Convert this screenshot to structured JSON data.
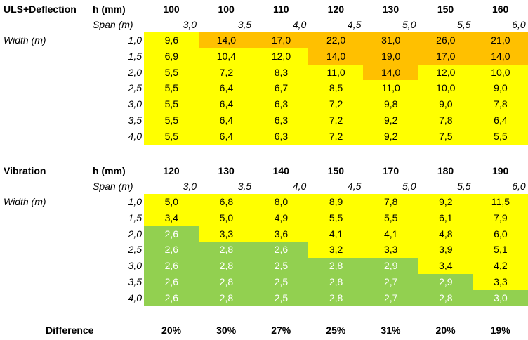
{
  "tables": [
    {
      "title": "ULS+Deflection",
      "h_label": "h (mm)",
      "h_values": [
        "100",
        "100",
        "110",
        "120",
        "130",
        "150",
        "160"
      ],
      "span_label": "Span (m)",
      "spans": [
        "3,0",
        "3,5",
        "4,0",
        "4,5",
        "5,0",
        "5,5",
        "6,0"
      ],
      "width_label": "Width (m)",
      "rows": [
        {
          "width": "1,0",
          "cells": [
            {
              "text": "9,6",
              "fill": "yellow"
            },
            {
              "text": "14,0",
              "fill": "orange"
            },
            {
              "text": "17,0",
              "fill": "orange"
            },
            {
              "text": "22,0",
              "fill": "orange"
            },
            {
              "text": "31,0",
              "fill": "orange"
            },
            {
              "text": "26,0",
              "fill": "orange"
            },
            {
              "text": "21,0",
              "fill": "orange"
            }
          ]
        },
        {
          "width": "1,5",
          "cells": [
            {
              "text": "6,9",
              "fill": "yellow"
            },
            {
              "text": "10,4",
              "fill": "yellow"
            },
            {
              "text": "12,0",
              "fill": "yellow"
            },
            {
              "text": "14,0",
              "fill": "orange"
            },
            {
              "text": "19,0",
              "fill": "orange"
            },
            {
              "text": "17,0",
              "fill": "orange"
            },
            {
              "text": "14,0",
              "fill": "orange"
            }
          ]
        },
        {
          "width": "2,0",
          "cells": [
            {
              "text": "5,5",
              "fill": "yellow"
            },
            {
              "text": "7,2",
              "fill": "yellow"
            },
            {
              "text": "8,3",
              "fill": "yellow"
            },
            {
              "text": "11,0",
              "fill": "yellow"
            },
            {
              "text": "14,0",
              "fill": "orange"
            },
            {
              "text": "12,0",
              "fill": "yellow"
            },
            {
              "text": "10,0",
              "fill": "yellow"
            }
          ]
        },
        {
          "width": "2,5",
          "cells": [
            {
              "text": "5,5",
              "fill": "yellow"
            },
            {
              "text": "6,4",
              "fill": "yellow"
            },
            {
              "text": "6,7",
              "fill": "yellow"
            },
            {
              "text": "8,5",
              "fill": "yellow"
            },
            {
              "text": "11,0",
              "fill": "yellow"
            },
            {
              "text": "10,0",
              "fill": "yellow"
            },
            {
              "text": "9,0",
              "fill": "yellow"
            }
          ]
        },
        {
          "width": "3,0",
          "cells": [
            {
              "text": "5,5",
              "fill": "yellow"
            },
            {
              "text": "6,4",
              "fill": "yellow"
            },
            {
              "text": "6,3",
              "fill": "yellow"
            },
            {
              "text": "7,2",
              "fill": "yellow"
            },
            {
              "text": "9,8",
              "fill": "yellow"
            },
            {
              "text": "9,0",
              "fill": "yellow"
            },
            {
              "text": "7,8",
              "fill": "yellow"
            }
          ]
        },
        {
          "width": "3,5",
          "cells": [
            {
              "text": "5,5",
              "fill": "yellow"
            },
            {
              "text": "6,4",
              "fill": "yellow"
            },
            {
              "text": "6,3",
              "fill": "yellow"
            },
            {
              "text": "7,2",
              "fill": "yellow"
            },
            {
              "text": "9,2",
              "fill": "yellow"
            },
            {
              "text": "7,8",
              "fill": "yellow"
            },
            {
              "text": "6,4",
              "fill": "yellow"
            }
          ]
        },
        {
          "width": "4,0",
          "cells": [
            {
              "text": "5,5",
              "fill": "yellow"
            },
            {
              "text": "6,4",
              "fill": "yellow"
            },
            {
              "text": "6,3",
              "fill": "yellow"
            },
            {
              "text": "7,2",
              "fill": "yellow"
            },
            {
              "text": "9,2",
              "fill": "yellow"
            },
            {
              "text": "7,5",
              "fill": "yellow"
            },
            {
              "text": "5,5",
              "fill": "yellow"
            }
          ]
        }
      ]
    },
    {
      "title": "Vibration",
      "h_label": "h (mm)",
      "h_values": [
        "120",
        "130",
        "140",
        "150",
        "170",
        "180",
        "190"
      ],
      "span_label": "Span (m)",
      "spans": [
        "3,0",
        "3,5",
        "4,0",
        "4,5",
        "5,0",
        "5,5",
        "6,0"
      ],
      "width_label": "Width (m)",
      "rows": [
        {
          "width": "1,0",
          "cells": [
            {
              "text": "5,0",
              "fill": "yellow"
            },
            {
              "text": "6,8",
              "fill": "yellow"
            },
            {
              "text": "8,0",
              "fill": "yellow"
            },
            {
              "text": "8,9",
              "fill": "yellow"
            },
            {
              "text": "7,8",
              "fill": "yellow"
            },
            {
              "text": "9,2",
              "fill": "yellow"
            },
            {
              "text": "11,5",
              "fill": "yellow"
            }
          ]
        },
        {
          "width": "1,5",
          "cells": [
            {
              "text": "3,4",
              "fill": "yellow"
            },
            {
              "text": "5,0",
              "fill": "yellow"
            },
            {
              "text": "4,9",
              "fill": "yellow"
            },
            {
              "text": "5,5",
              "fill": "yellow"
            },
            {
              "text": "5,5",
              "fill": "yellow"
            },
            {
              "text": "6,1",
              "fill": "yellow"
            },
            {
              "text": "7,9",
              "fill": "yellow"
            }
          ]
        },
        {
          "width": "2,0",
          "cells": [
            {
              "text": "2,6",
              "fill": "green"
            },
            {
              "text": "3,3",
              "fill": "yellow"
            },
            {
              "text": "3,6",
              "fill": "yellow"
            },
            {
              "text": "4,1",
              "fill": "yellow"
            },
            {
              "text": "4,1",
              "fill": "yellow"
            },
            {
              "text": "4,8",
              "fill": "yellow"
            },
            {
              "text": "6,0",
              "fill": "yellow"
            }
          ]
        },
        {
          "width": "2,5",
          "cells": [
            {
              "text": "2,6",
              "fill": "green"
            },
            {
              "text": "2,8",
              "fill": "green"
            },
            {
              "text": "2,6",
              "fill": "green"
            },
            {
              "text": "3,2",
              "fill": "yellow"
            },
            {
              "text": "3,3",
              "fill": "yellow"
            },
            {
              "text": "3,9",
              "fill": "yellow"
            },
            {
              "text": "5,1",
              "fill": "yellow"
            }
          ]
        },
        {
          "width": "3,0",
          "cells": [
            {
              "text": "2,6",
              "fill": "green"
            },
            {
              "text": "2,8",
              "fill": "green"
            },
            {
              "text": "2,5",
              "fill": "green"
            },
            {
              "text": "2,8",
              "fill": "green"
            },
            {
              "text": "2,9",
              "fill": "green"
            },
            {
              "text": "3,4",
              "fill": "yellow"
            },
            {
              "text": "4,2",
              "fill": "yellow"
            }
          ]
        },
        {
          "width": "3,5",
          "cells": [
            {
              "text": "2,6",
              "fill": "green"
            },
            {
              "text": "2,8",
              "fill": "green"
            },
            {
              "text": "2,5",
              "fill": "green"
            },
            {
              "text": "2,8",
              "fill": "green"
            },
            {
              "text": "2,7",
              "fill": "green"
            },
            {
              "text": "2,9",
              "fill": "green"
            },
            {
              "text": "3,3",
              "fill": "yellow"
            }
          ]
        },
        {
          "width": "4,0",
          "cells": [
            {
              "text": "2,6",
              "fill": "green"
            },
            {
              "text": "2,8",
              "fill": "green"
            },
            {
              "text": "2,5",
              "fill": "green"
            },
            {
              "text": "2,8",
              "fill": "green"
            },
            {
              "text": "2,7",
              "fill": "green"
            },
            {
              "text": "2,8",
              "fill": "green"
            },
            {
              "text": "3,0",
              "fill": "green"
            }
          ]
        }
      ]
    }
  ],
  "difference": {
    "label": "Difference",
    "values": [
      "20%",
      "30%",
      "27%",
      "25%",
      "31%",
      "20%",
      "19%"
    ]
  }
}
